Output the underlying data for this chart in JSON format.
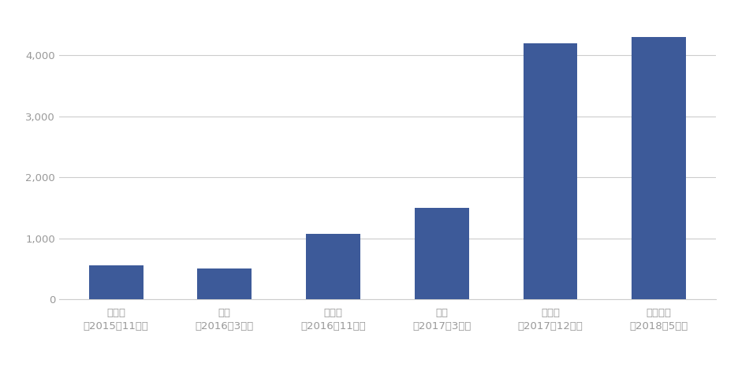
{
  "categories": [
    "旧金山\n（2015年11月）",
    "伦敦\n（2016年3月）",
    "西雅图\n（2016年11月）",
    "柏林\n（2017年3月）",
    "奥斯汀\n（2017年12月）",
    "哥本哈根\n（2018年5月）"
  ],
  "values": [
    550,
    500,
    1075,
    1500,
    4200,
    4300
  ],
  "bar_color": "#3d5a99",
  "background_color": "#ffffff",
  "ylim": [
    0,
    4600
  ],
  "yticks": [
    0,
    1000,
    2000,
    3000,
    4000
  ],
  "grid_color": "#cccccc",
  "tick_label_color": "#999999",
  "bar_width": 0.5
}
